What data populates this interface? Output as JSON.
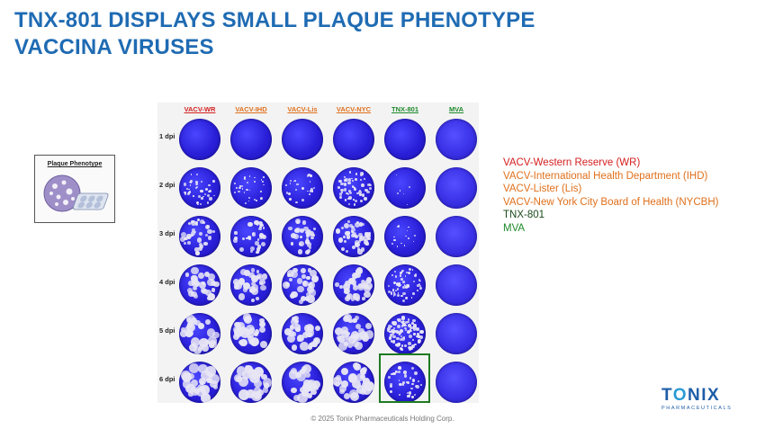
{
  "title_line1": "TNX-801 DISPLAYS SMALL PLAQUE PHENOTYPE",
  "title_line2": "VACCINA VIRUSES",
  "inset_label": "Plaque Phenotype",
  "columns": [
    {
      "label": "VACV-WR",
      "color": "#d42020"
    },
    {
      "label": "VACV-IHD",
      "color": "#e0701c"
    },
    {
      "label": "VACV-Lis",
      "color": "#e0701c"
    },
    {
      "label": "VACV-NYC",
      "color": "#e0701c"
    },
    {
      "label": "TNX-801",
      "color": "#1e8a2a"
    },
    {
      "label": "MVA",
      "color": "#1e8a2a"
    }
  ],
  "rows": [
    "1 dpi",
    "2 dpi",
    "3 dpi",
    "4 dpi",
    "5 dpi",
    "6 dpi"
  ],
  "legend": [
    {
      "text": "VACV-Western Reserve (WR)",
      "color": "#d42020"
    },
    {
      "text": "VACV-International Health Department (IHD)",
      "color": "#e0701c"
    },
    {
      "text": "VACV-Lister (Lis)",
      "color": "#e0701c"
    },
    {
      "text": "VACV-New York City Board of Health (NYCBH)",
      "color": "#e0701c"
    },
    {
      "text": "TNX-801",
      "color": "#1a4a1a"
    },
    {
      "text": "MVA",
      "color": "#1e8a2a"
    }
  ],
  "logo": {
    "main_pre": "T",
    "main_o": "O",
    "main_post": "NIX",
    "sub": "PHARMACEUTICALS"
  },
  "footer": "© 2025 Tonix Pharmaceuticals Holding Corp."
}
